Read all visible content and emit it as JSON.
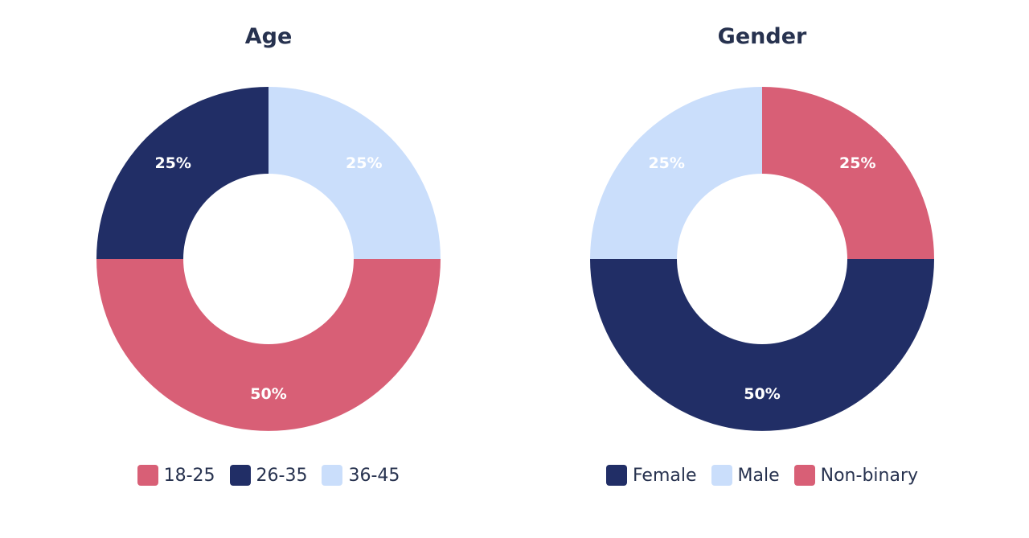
{
  "colors": {
    "dark_navy": "#212e66",
    "light_blue": "#cadefb",
    "rose": "#d85f76"
  },
  "chart_data": [
    {
      "type": "pie",
      "donut": true,
      "title": "Age",
      "slices": [
        {
          "label": "36-45",
          "value": 25,
          "text": "25%",
          "color": "#cadefb"
        },
        {
          "label": "18-25",
          "value": 50,
          "text": "50%",
          "color": "#d85f76"
        },
        {
          "label": "26-35",
          "value": 25,
          "text": "25%",
          "color": "#212e66"
        }
      ],
      "legend": [
        {
          "label": "18-25",
          "color": "#d85f76"
        },
        {
          "label": "26-35",
          "color": "#212e66"
        },
        {
          "label": "36-45",
          "color": "#cadefb"
        }
      ],
      "legend_position": "bottom"
    },
    {
      "type": "pie",
      "donut": true,
      "title": "Gender",
      "slices": [
        {
          "label": "Non-binary",
          "value": 25,
          "text": "25%",
          "color": "#d85f76"
        },
        {
          "label": "Female",
          "value": 50,
          "text": "50%",
          "color": "#212e66"
        },
        {
          "label": "Male",
          "value": 25,
          "text": "25%",
          "color": "#cadefb"
        }
      ],
      "legend": [
        {
          "label": "Female",
          "color": "#212e66"
        },
        {
          "label": "Male",
          "color": "#cadefb"
        },
        {
          "label": "Non-binary",
          "color": "#d85f76"
        }
      ],
      "legend_position": "bottom"
    }
  ]
}
